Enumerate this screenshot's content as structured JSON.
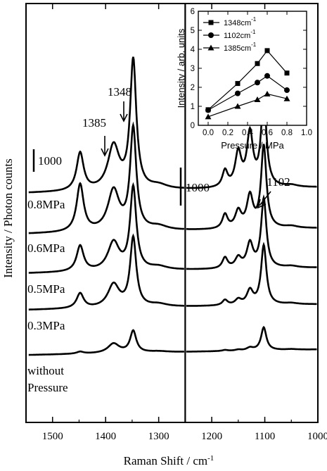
{
  "chart_data": [
    {
      "type": "line",
      "panel": "main",
      "xlabel": "Raman Shift / cm",
      "xlabel_sup": "-1",
      "ylabel": "Intensity / Photon counts",
      "xlim": [
        1550,
        1000
      ],
      "x_reversed": true,
      "x_ticks": [
        "1500",
        "1400",
        "1300",
        "1200",
        "1100",
        "1000"
      ],
      "x_tick_values": [
        1500,
        1400,
        1300,
        1200,
        1100,
        1000
      ],
      "axis_break_at": 1250,
      "grid": false,
      "scale_bar_left": "1000",
      "scale_bar_right": "1000",
      "series": [
        {
          "name": "0.8MPa",
          "baseline": 2060,
          "peaks": [
            [
              1348,
              1900,
              7
            ],
            [
              1385,
              650,
              13
            ],
            [
              1448,
              560,
              8
            ],
            [
              1300,
              60,
              20
            ],
            [
              1102,
              1320,
              6
            ],
            [
              1128,
              780,
              7
            ],
            [
              1150,
              500,
              7
            ],
            [
              1175,
              240,
              6
            ],
            [
              1050,
              30,
              15
            ]
          ]
        },
        {
          "name": "0.6MPa",
          "baseline": 1480,
          "peaks": [
            [
              1348,
              1500,
              7
            ],
            [
              1385,
              600,
              13
            ],
            [
              1448,
              700,
              8
            ],
            [
              1300,
              60,
              20
            ],
            [
              1102,
              1220,
              6
            ],
            [
              1128,
              470,
              7
            ],
            [
              1150,
              250,
              7
            ],
            [
              1175,
              210,
              6
            ],
            [
              1050,
              30,
              15
            ]
          ]
        },
        {
          "name": "0.5MPa",
          "baseline": 980,
          "peaks": [
            [
              1348,
              1220,
              7
            ],
            [
              1385,
              420,
              13
            ],
            [
              1448,
              380,
              8
            ],
            [
              1300,
              50,
              20
            ],
            [
              1102,
              1020,
              6
            ],
            [
              1128,
              360,
              7
            ],
            [
              1150,
              150,
              7
            ],
            [
              1175,
              160,
              6
            ],
            [
              1050,
              25,
              15
            ]
          ]
        },
        {
          "name": "0.3MPa",
          "baseline": 500,
          "peaks": [
            [
              1348,
              1020,
              7
            ],
            [
              1385,
              340,
              13
            ],
            [
              1448,
              220,
              8
            ],
            [
              1300,
              40,
              20
            ],
            [
              1102,
              880,
              6
            ],
            [
              1128,
              210,
              7
            ],
            [
              1150,
              80,
              7
            ],
            [
              1175,
              80,
              6
            ],
            [
              1050,
              20,
              15
            ]
          ]
        },
        {
          "name": "without\nPressure",
          "baseline": 0,
          "peaks": [
            [
              1348,
              320,
              7
            ],
            [
              1385,
              140,
              13
            ],
            [
              1448,
              30,
              8
            ],
            [
              1300,
              15,
              20
            ],
            [
              1102,
              340,
              6
            ],
            [
              1128,
              40,
              7
            ],
            [
              1150,
              15,
              7
            ],
            [
              1175,
              15,
              6
            ],
            [
              1050,
              10,
              15
            ]
          ]
        }
      ],
      "annotations": [
        {
          "text": "1348",
          "x": 1348
        },
        {
          "text": "1385",
          "x": 1385
        },
        {
          "text": "1102",
          "x": 1102
        }
      ]
    },
    {
      "type": "line",
      "panel": "inset",
      "xlabel": "Pressure / MPa",
      "ylabel": "Intensity / arb. units",
      "xlim": [
        -0.1,
        1.0
      ],
      "ylim": [
        0,
        6
      ],
      "x_ticks": [
        "0.0",
        "0.2",
        "0.4",
        "0.6",
        "0.8",
        "1.0"
      ],
      "x_tick_values": [
        0.0,
        0.2,
        0.4,
        0.6,
        0.8,
        1.0
      ],
      "y_ticks": [
        "0",
        "1",
        "2",
        "3",
        "4",
        "5",
        "6"
      ],
      "y_tick_values": [
        0,
        1,
        2,
        3,
        4,
        5,
        6
      ],
      "legend_position": "top-left",
      "x": [
        0.0,
        0.3,
        0.5,
        0.6,
        0.8
      ],
      "series": [
        {
          "name": "1348cm",
          "name_sup": "-1",
          "marker": "square",
          "values": [
            0.82,
            2.2,
            3.25,
            3.93,
            2.75
          ]
        },
        {
          "name": "1102cm",
          "name_sup": "-1",
          "marker": "circle",
          "values": [
            0.8,
            1.68,
            2.25,
            2.6,
            1.85
          ]
        },
        {
          "name": "1385cm",
          "name_sup": "-1",
          "marker": "triangle",
          "values": [
            0.45,
            1.0,
            1.35,
            1.65,
            1.4
          ]
        }
      ]
    }
  ]
}
